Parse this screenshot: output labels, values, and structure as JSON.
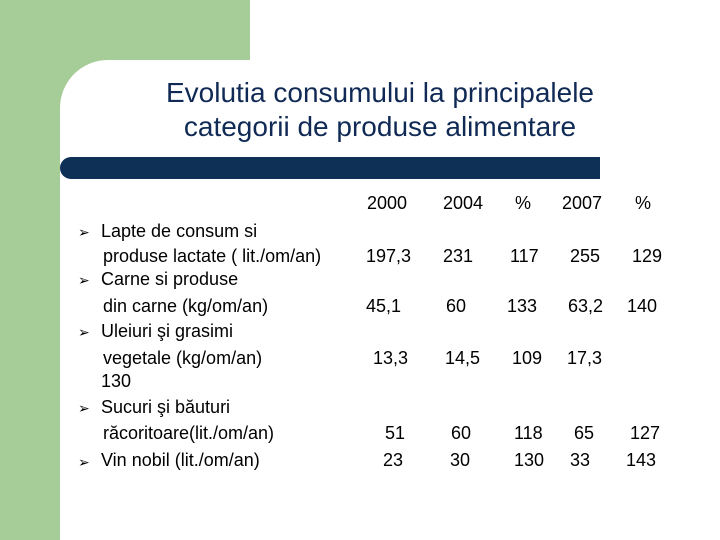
{
  "title_line1": "Evolutia  consumului la principalele",
  "title_line2": "categorii de produse alimentare",
  "headers": [
    "2000",
    "2004",
    "%",
    "2007",
    "%"
  ],
  "bullet_glyph": "➢",
  "items": [
    {
      "lines": [
        "Lapte de consum si",
        "produse lactate ( lit./om/an)"
      ],
      "values": [
        "197,3",
        "231",
        "117",
        "255",
        "129"
      ]
    },
    {
      "lines": [
        "Carne si produse",
        "din carne (kg/om/an)"
      ],
      "values": [
        "45,1",
        "60",
        "133",
        "63,2",
        "140"
      ]
    },
    {
      "lines": [
        "Uleiuri şi grasimi",
        "vegetale (kg/om/an)",
        "130"
      ],
      "values": [
        "13,3",
        "14,5",
        "109",
        "17,3",
        ""
      ]
    },
    {
      "lines": [
        "Sucuri şi băuturi",
        "răcoritoare(lit./om/an)"
      ],
      "values": [
        "51",
        "60",
        "118",
        "65",
        "127"
      ]
    },
    {
      "lines": [
        "Vin nobil (lit./om/an)"
      ],
      "values": [
        "23",
        "30",
        "130",
        "33",
        "143"
      ]
    }
  ]
}
